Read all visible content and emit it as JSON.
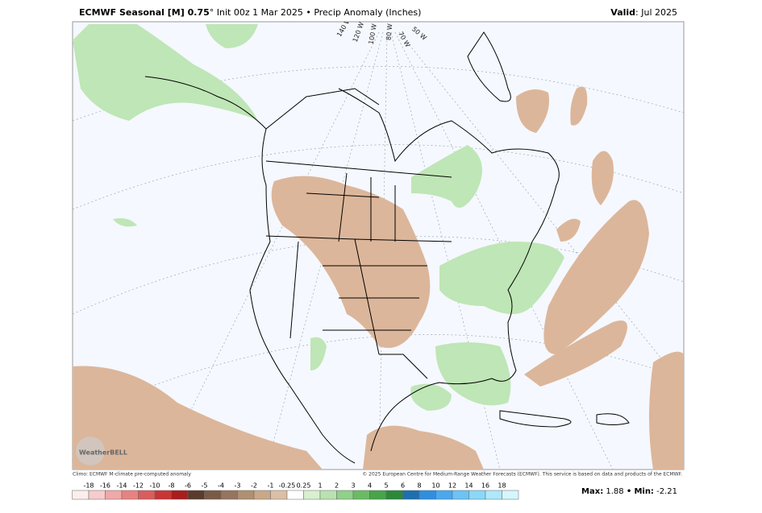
{
  "header": {
    "title_bold": "ECMWF Seasonal [M] 0.75",
    "title_rest": "° Init 00z 1 Mar 2025 • Precip Anomaly (Inches)",
    "valid_label": "Valid",
    "valid_value": ": Jul 2025"
  },
  "map": {
    "longitude_labels": [
      "140 W",
      "120 W",
      "100 W",
      "80 W",
      "70 W",
      "50 W"
    ],
    "logo": "WeatherBELL"
  },
  "footer": {
    "climo": "Climo: ECMWF M-climate pre-computed anomaly",
    "copyright": "© 2025 European Centre for Medium-Range Weather Forecasts (ECMWF). This service is based on data and products of the ECMWF."
  },
  "colorbar": {
    "labels": [
      "-18",
      "-16",
      "-14",
      "-12",
      "-10",
      "-8",
      "-6",
      "-5",
      "-4",
      "-3",
      "-2",
      "-1",
      "-0.25",
      "0.25",
      "1",
      "2",
      "3",
      "4",
      "5",
      "6",
      "8",
      "10",
      "12",
      "14",
      "16",
      "18"
    ],
    "colors": [
      "#fdeeee",
      "#f7cccc",
      "#f0a8a8",
      "#e88282",
      "#dc5c5c",
      "#c83535",
      "#a81d1d",
      "#5b3b2b",
      "#7a5a45",
      "#957560",
      "#b09070",
      "#c8a888",
      "#dcc0a5",
      "#ffffff",
      "#d8f0d0",
      "#b8e3b0",
      "#90d08a",
      "#6abb64",
      "#48a448",
      "#2a8a3a",
      "#1e6fb0",
      "#2f8ee0",
      "#4aa8f0",
      "#6ac4f5",
      "#8ad8f8",
      "#aee8fa",
      "#d5f6fc"
    ]
  },
  "stats": {
    "max_label": "Max:",
    "max": "1.88",
    "separator": "•",
    "min_label": "Min:",
    "min": "-2.21"
  }
}
